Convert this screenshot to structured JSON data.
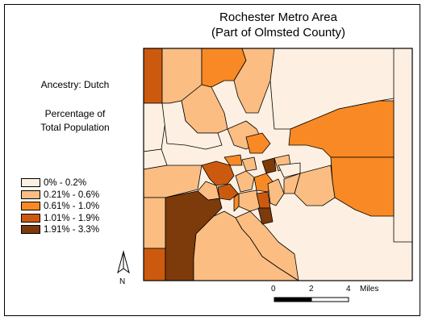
{
  "title": {
    "line1": "Rochester Metro Area",
    "line2": "(Part of Olmsted County)"
  },
  "subject": "Ancestry: Dutch",
  "measure": {
    "line1": "Percentage of",
    "line2": "Total Population"
  },
  "legend": [
    {
      "label": "0% - 0.2%",
      "color": "#fdf0e2"
    },
    {
      "label": "0.21% - 0.6%",
      "color": "#fbbd82"
    },
    {
      "label": "0.61% - 1.0%",
      "color": "#f88924"
    },
    {
      "label": "1.01% - 1.9%",
      "color": "#cc5a0e"
    },
    {
      "label": "1.91% - 3.3%",
      "color": "#7d3a0a"
    }
  ],
  "north_arrow": {
    "label": "N",
    "icon": "north-arrow-icon"
  },
  "scale_bar": {
    "ticks": [
      "0",
      "2",
      "4"
    ],
    "unit": "Miles"
  }
}
